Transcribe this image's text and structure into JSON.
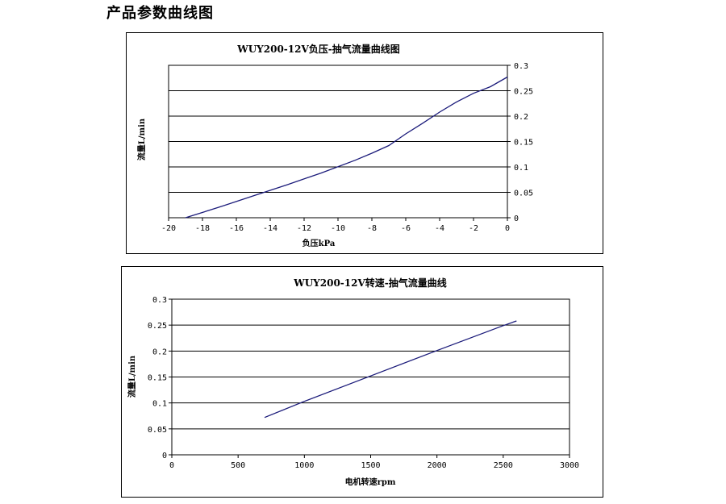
{
  "page": {
    "heading": "产品参数曲线图"
  },
  "chart_data": [
    {
      "type": "line",
      "title": "WUY200-12V负压-抽气流量曲线图",
      "xlabel": "负压kPa",
      "ylabel": "流量L/min",
      "xlim": [
        -20,
        0
      ],
      "ylim": [
        0,
        0.3
      ],
      "x_ticks": [
        "-20",
        "-18",
        "-16",
        "-14",
        "-12",
        "-10",
        "-8",
        "-6",
        "-4",
        "-2",
        "0"
      ],
      "y_ticks": [
        "0",
        "0.05",
        "0.1",
        "0.15",
        "0.2",
        "0.25",
        "0.3"
      ],
      "y_axis_side": "right",
      "grid": "horizontal",
      "line_color": "#1a1a7a",
      "series": [
        {
          "x": [
            -19.0,
            -17.0,
            -15.0,
            -13.0,
            -11.0,
            -9.0,
            -8.0,
            -7.0,
            -6.0,
            -5.0,
            -4.0,
            -3.0,
            -2.0,
            -1.0,
            0.0
          ],
          "y": [
            0.0,
            0.021,
            0.043,
            0.065,
            0.088,
            0.113,
            0.127,
            0.142,
            0.165,
            0.186,
            0.208,
            0.228,
            0.245,
            0.258,
            0.277
          ]
        }
      ]
    },
    {
      "type": "line",
      "title": "WUY200-12V转速-抽气流量曲线",
      "xlabel": "电机转速rpm",
      "ylabel": "流量L/min",
      "xlim": [
        0,
        3000
      ],
      "ylim": [
        0,
        0.3
      ],
      "x_ticks": [
        "0",
        "500",
        "1000",
        "1500",
        "2000",
        "2500",
        "3000"
      ],
      "y_ticks": [
        "0",
        "0.05",
        "0.1",
        "0.15",
        "0.2",
        "0.25",
        "0.3"
      ],
      "y_axis_side": "left",
      "grid": "horizontal",
      "line_color": "#1a1a7a",
      "series": [
        {
          "x": [
            700,
            1000,
            1500,
            2000,
            2500,
            2600
          ],
          "y": [
            0.072,
            0.103,
            0.152,
            0.201,
            0.249,
            0.258
          ]
        }
      ]
    }
  ]
}
